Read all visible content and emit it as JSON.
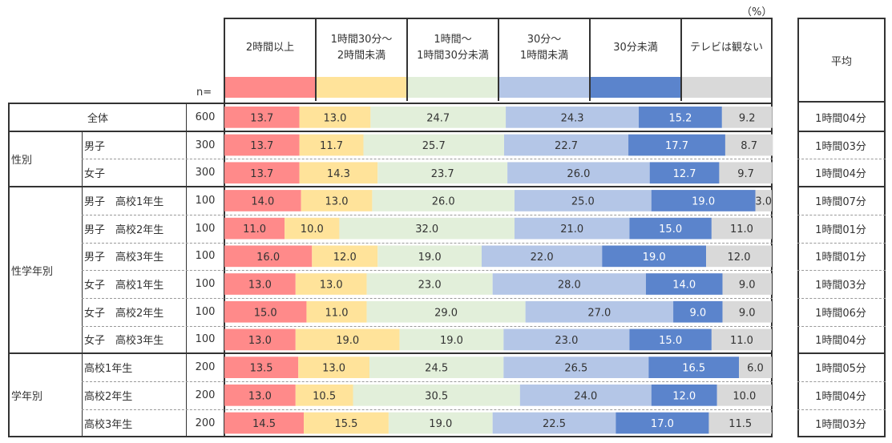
{
  "unit_label": "（%）",
  "n_label": "n=",
  "avg_header": "平均",
  "categories": [
    {
      "label": "2時間以上",
      "color": "#ff8a8a"
    },
    {
      "label": "1時間30分～\n2時間未満",
      "color": "#ffe39a"
    },
    {
      "label": "1時間～\n1時間30分未満",
      "color": "#e2efda"
    },
    {
      "label": "30分～\n1時間未満",
      "color": "#b4c6e7"
    },
    {
      "label": "30分未満",
      "color": "#5b84cc"
    },
    {
      "label": "テレビは観ない",
      "color": "#d9d9d9"
    }
  ],
  "groups": [
    {
      "label": "",
      "rows": [
        0
      ]
    },
    {
      "label": "性別",
      "rows": [
        1,
        2
      ]
    },
    {
      "label": "性学年別",
      "rows": [
        3,
        4,
        5,
        6,
        7,
        8
      ]
    },
    {
      "label": "学年別",
      "rows": [
        9,
        10,
        11
      ]
    }
  ],
  "chart_data": {
    "type": "bar",
    "stacked": true,
    "orientation": "horizontal",
    "unit": "%",
    "xlim": [
      0,
      100
    ],
    "categories": [
      "全体",
      "男子",
      "女子",
      "男子　高校1年生",
      "男子　高校2年生",
      "男子　高校3年生",
      "女子　高校1年生",
      "女子　高校2年生",
      "女子　高校3年生",
      "高校1年生",
      "高校2年生",
      "高校3年生"
    ],
    "n": [
      "600",
      "300",
      "300",
      "100",
      "100",
      "100",
      "100",
      "100",
      "100",
      "200",
      "200",
      "200"
    ],
    "averages": [
      "1時間04分",
      "1時間03分",
      "1時間04分",
      "1時間07分",
      "1時間01分",
      "1時間01分",
      "1時間03分",
      "1時間06分",
      "1時間04分",
      "1時間05分",
      "1時間04分",
      "1時間03分"
    ],
    "series": [
      {
        "name": "2時間以上",
        "values": [
          13.7,
          13.7,
          13.7,
          14.0,
          11.0,
          16.0,
          13.0,
          15.0,
          13.0,
          13.5,
          13.0,
          14.5
        ]
      },
      {
        "name": "1時間30分～2時間未満",
        "values": [
          13.0,
          11.7,
          14.3,
          13.0,
          10.0,
          12.0,
          13.0,
          11.0,
          19.0,
          13.0,
          10.5,
          15.5
        ]
      },
      {
        "name": "1時間～1時間30分未満",
        "values": [
          24.7,
          25.7,
          23.7,
          26.0,
          32.0,
          19.0,
          23.0,
          29.0,
          19.0,
          24.5,
          30.5,
          19.0
        ]
      },
      {
        "name": "30分～1時間未満",
        "values": [
          24.3,
          22.7,
          26.0,
          25.0,
          21.0,
          22.0,
          28.0,
          27.0,
          23.0,
          26.5,
          24.0,
          22.5
        ]
      },
      {
        "name": "30分未満",
        "values": [
          15.2,
          17.7,
          12.7,
          19.0,
          15.0,
          19.0,
          14.0,
          9.0,
          15.0,
          16.5,
          12.0,
          17.0
        ]
      },
      {
        "name": "テレビは観ない",
        "values": [
          9.2,
          8.7,
          9.7,
          3.0,
          11.0,
          12.0,
          9.0,
          9.0,
          11.0,
          6.0,
          10.0,
          11.5
        ]
      }
    ]
  }
}
